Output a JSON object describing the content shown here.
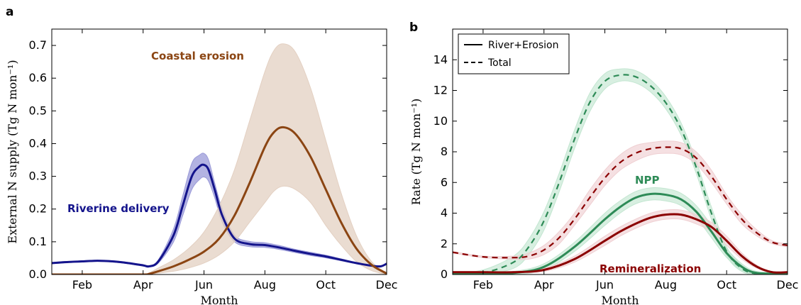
{
  "chart_data": [
    {
      "type": "line",
      "panel_label": "a",
      "xlabel": "Month",
      "ylabel": "External N supply (Tg N mon⁻¹)",
      "xticks": [
        "Feb",
        "Apr",
        "Jun",
        "Aug",
        "Oct",
        "Dec"
      ],
      "xtick_values": [
        2,
        4,
        6,
        8,
        10,
        12
      ],
      "xlim": [
        1,
        12
      ],
      "ylim": [
        0,
        0.75
      ],
      "yticks": [
        "0.0",
        "0.1",
        "0.2",
        "0.3",
        "0.4",
        "0.5",
        "0.6",
        "0.7"
      ],
      "ytick_values": [
        0,
        0.1,
        0.2,
        0.3,
        0.4,
        0.5,
        0.6,
        0.7
      ],
      "grid": false,
      "annotations": [
        {
          "text": "Riverine delivery",
          "color": "#14148c"
        },
        {
          "text": "Coastal erosion",
          "color": "#8b4513"
        }
      ],
      "series": [
        {
          "name": "Riverine delivery",
          "style": "solid",
          "color": "#14148c",
          "x": [
            1,
            1.5,
            2,
            2.5,
            3,
            3.5,
            4,
            4.2,
            4.5,
            5,
            5.3,
            5.6,
            5.85,
            6,
            6.15,
            6.35,
            6.6,
            7,
            7.5,
            8,
            8.5,
            9,
            9.5,
            10,
            10.5,
            11,
            11.5,
            11.8,
            12
          ],
          "y": [
            0.035,
            0.038,
            0.04,
            0.042,
            0.04,
            0.035,
            0.028,
            0.025,
            0.04,
            0.12,
            0.21,
            0.3,
            0.33,
            0.335,
            0.32,
            0.26,
            0.18,
            0.11,
            0.093,
            0.09,
            0.082,
            0.072,
            0.063,
            0.055,
            0.045,
            0.035,
            0.027,
            0.025,
            0.033
          ],
          "band_upper": [
            0.037,
            0.04,
            0.042,
            0.044,
            0.042,
            0.037,
            0.03,
            0.027,
            0.045,
            0.14,
            0.24,
            0.34,
            0.365,
            0.37,
            0.35,
            0.28,
            0.2,
            0.12,
            0.101,
            0.097,
            0.088,
            0.077,
            0.068,
            0.059,
            0.048,
            0.037,
            0.029,
            0.027,
            0.035
          ],
          "band_lower": [
            0.033,
            0.036,
            0.038,
            0.04,
            0.038,
            0.033,
            0.026,
            0.023,
            0.035,
            0.1,
            0.18,
            0.26,
            0.29,
            0.298,
            0.285,
            0.235,
            0.16,
            0.1,
            0.085,
            0.083,
            0.076,
            0.067,
            0.058,
            0.051,
            0.042,
            0.033,
            0.025,
            0.023,
            0.031
          ],
          "band_color": "#9a9ad8"
        },
        {
          "name": "Coastal erosion",
          "style": "solid",
          "color": "#8b4513",
          "x": [
            1,
            2,
            3,
            4,
            4.2,
            4.5,
            5,
            5.5,
            6,
            6.5,
            7,
            7.5,
            8,
            8.3,
            8.6,
            9,
            9.5,
            10,
            10.5,
            11,
            11.5,
            12
          ],
          "y": [
            0,
            0,
            0,
            0,
            0.002,
            0.01,
            0.025,
            0.045,
            0.07,
            0.11,
            0.18,
            0.28,
            0.39,
            0.435,
            0.45,
            0.43,
            0.36,
            0.26,
            0.16,
            0.08,
            0.03,
            0.003
          ],
          "band_upper": [
            0,
            0,
            0,
            0,
            0.005,
            0.02,
            0.045,
            0.08,
            0.13,
            0.21,
            0.32,
            0.47,
            0.62,
            0.685,
            0.705,
            0.68,
            0.57,
            0.41,
            0.25,
            0.12,
            0.04,
            0.005
          ],
          "band_lower": [
            0,
            0,
            0,
            0,
            0,
            0.004,
            0.01,
            0.02,
            0.035,
            0.06,
            0.1,
            0.16,
            0.22,
            0.255,
            0.27,
            0.26,
            0.22,
            0.15,
            0.09,
            0.04,
            0.012,
            0
          ],
          "band_color": "#e3d0c2"
        }
      ]
    },
    {
      "type": "line",
      "panel_label": "b",
      "xlabel": "Month",
      "ylabel": "Rate (Tg N mon⁻¹)",
      "xticks": [
        "Feb",
        "Apr",
        "Jun",
        "Aug",
        "Oct",
        "Dec"
      ],
      "xtick_values": [
        2,
        4,
        6,
        8,
        10,
        12
      ],
      "xlim": [
        1,
        12
      ],
      "ylim": [
        0,
        16
      ],
      "yticks": [
        "0",
        "2",
        "4",
        "6",
        "8",
        "10",
        "12",
        "14"
      ],
      "ytick_values": [
        0,
        2,
        4,
        6,
        8,
        10,
        12,
        14
      ],
      "grid": false,
      "legend": {
        "placement": "top-left",
        "entries": [
          {
            "label": "River+Erosion",
            "style": "solid"
          },
          {
            "label": "Total",
            "style": "dashed"
          }
        ]
      },
      "annotations": [
        {
          "text": "NPP",
          "color": "#2e8b57"
        },
        {
          "text": "Remineralization",
          "color": "#8b0000"
        }
      ],
      "series": [
        {
          "group": "NPP",
          "legend_style": "River+Erosion",
          "style": "solid",
          "color": "#2e8b57",
          "x": [
            1,
            2,
            3,
            4,
            5,
            6,
            6.5,
            7,
            7.5,
            8,
            8.5,
            9,
            9.5,
            10,
            10.5,
            11,
            12
          ],
          "y": [
            0.05,
            0.05,
            0.1,
            0.5,
            1.8,
            3.6,
            4.4,
            5.0,
            5.25,
            5.2,
            4.9,
            4.1,
            2.8,
            1.4,
            0.5,
            0.1,
            0.05
          ],
          "band_upper": [
            0.1,
            0.1,
            0.2,
            0.7,
            2.1,
            4.0,
            4.8,
            5.4,
            5.65,
            5.6,
            5.3,
            4.5,
            3.2,
            1.7,
            0.7,
            0.2,
            0.1
          ],
          "band_lower": [
            0,
            0,
            0,
            0.3,
            1.5,
            3.2,
            4.0,
            4.6,
            4.85,
            4.8,
            4.5,
            3.7,
            2.4,
            1.1,
            0.3,
            0.02,
            0
          ],
          "band_color": "#c3e6d1"
        },
        {
          "group": "NPP",
          "legend_style": "Total",
          "style": "dashed",
          "color": "#2e8b57",
          "x": [
            1,
            2,
            3,
            3.5,
            4,
            4.5,
            5,
            5.5,
            6,
            6.5,
            7,
            7.5,
            8,
            8.5,
            9,
            9.5,
            10,
            10.5,
            11,
            12
          ],
          "y": [
            0,
            0.1,
            0.8,
            1.8,
            3.5,
            6.0,
            8.8,
            11.2,
            12.6,
            13.0,
            12.9,
            12.3,
            11.2,
            9.5,
            7.0,
            4.0,
            1.5,
            0.4,
            0.05,
            0
          ],
          "band_upper": [
            0.1,
            0.3,
            1.2,
            2.3,
            4.1,
            6.6,
            9.4,
            11.8,
            13.1,
            13.4,
            13.3,
            12.7,
            11.6,
            9.9,
            7.4,
            4.4,
            1.8,
            0.6,
            0.15,
            0.05
          ],
          "band_lower": [
            0,
            0,
            0.4,
            1.3,
            2.9,
            5.4,
            8.2,
            10.6,
            12.1,
            12.6,
            12.5,
            11.9,
            10.8,
            9.1,
            6.6,
            3.6,
            1.2,
            0.2,
            0,
            0
          ],
          "band_color": "#c3e6d1"
        },
        {
          "group": "Remineralization",
          "legend_style": "River+Erosion",
          "style": "solid",
          "color": "#8b0000",
          "x": [
            1,
            2,
            3,
            4,
            5,
            6,
            6.5,
            7,
            7.5,
            8,
            8.5,
            9,
            9.5,
            10,
            10.5,
            11,
            11.5,
            12
          ],
          "y": [
            0.15,
            0.15,
            0.15,
            0.3,
            1.0,
            2.2,
            2.8,
            3.3,
            3.7,
            3.9,
            3.9,
            3.6,
            3.1,
            2.2,
            1.2,
            0.5,
            0.15,
            0.15
          ],
          "band_upper": [
            0.2,
            0.2,
            0.2,
            0.4,
            1.2,
            2.5,
            3.1,
            3.6,
            4.0,
            4.2,
            4.2,
            3.9,
            3.4,
            2.5,
            1.4,
            0.6,
            0.2,
            0.2
          ],
          "band_lower": [
            0.1,
            0.1,
            0.1,
            0.2,
            0.8,
            1.9,
            2.5,
            3.0,
            3.4,
            3.6,
            3.6,
            3.3,
            2.8,
            1.9,
            1.0,
            0.4,
            0.1,
            0.1
          ],
          "band_color": "#efcfd2"
        },
        {
          "group": "Remineralization",
          "legend_style": "Total",
          "style": "dashed",
          "color": "#8b0000",
          "x": [
            1,
            2,
            3,
            3.5,
            4,
            4.5,
            5,
            5.5,
            6,
            6.5,
            7,
            7.5,
            8,
            8.5,
            9,
            9.5,
            10,
            10.5,
            11,
            11.5,
            12
          ],
          "y": [
            1.45,
            1.15,
            1.1,
            1.2,
            1.6,
            2.4,
            3.6,
            5.0,
            6.3,
            7.3,
            7.9,
            8.2,
            8.3,
            8.2,
            7.6,
            6.4,
            4.9,
            3.6,
            2.7,
            2.1,
            1.9
          ],
          "band_upper": [
            1.5,
            1.2,
            1.2,
            1.4,
            1.9,
            2.8,
            4.0,
            5.5,
            6.8,
            7.8,
            8.4,
            8.6,
            8.7,
            8.6,
            8.0,
            6.8,
            5.2,
            3.9,
            2.9,
            2.2,
            2.0
          ],
          "band_lower": [
            1.4,
            1.1,
            1.0,
            1.0,
            1.3,
            2.0,
            3.2,
            4.5,
            5.8,
            6.8,
            7.4,
            7.8,
            7.9,
            7.8,
            7.2,
            6.0,
            4.6,
            3.3,
            2.5,
            2.0,
            1.8
          ],
          "band_color": "#efcfd2"
        }
      ]
    }
  ]
}
